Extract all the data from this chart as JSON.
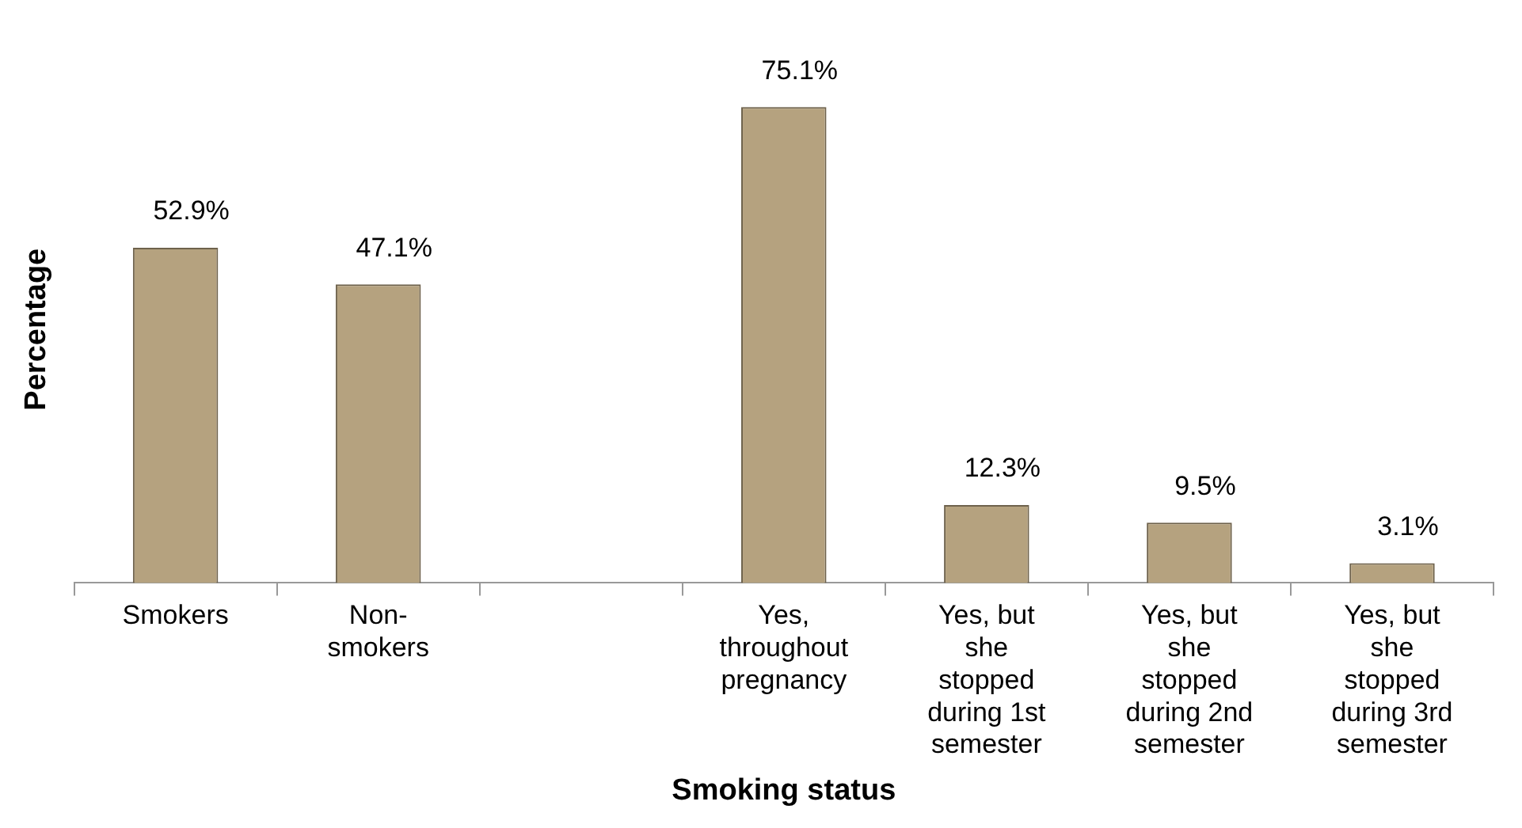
{
  "chart_data": {
    "type": "bar",
    "xlabel": "Smoking status",
    "ylabel": "Percentage",
    "categories": [
      "Smokers",
      "Non-smokers",
      null,
      "Yes, throughout pregnancy",
      "Yes, but she stopped during 1st semester",
      "Yes, but she stopped during 2nd semester",
      "Yes, but she stopped during 3rd semester"
    ],
    "values": [
      52.9,
      47.1,
      null,
      75.1,
      12.3,
      9.5,
      3.1
    ],
    "value_labels": [
      "52.9%",
      "47.1%",
      null,
      "75.1%",
      "12.3%",
      "9.5%",
      "3.1%"
    ],
    "color": "#b5a27f",
    "legend": false
  }
}
